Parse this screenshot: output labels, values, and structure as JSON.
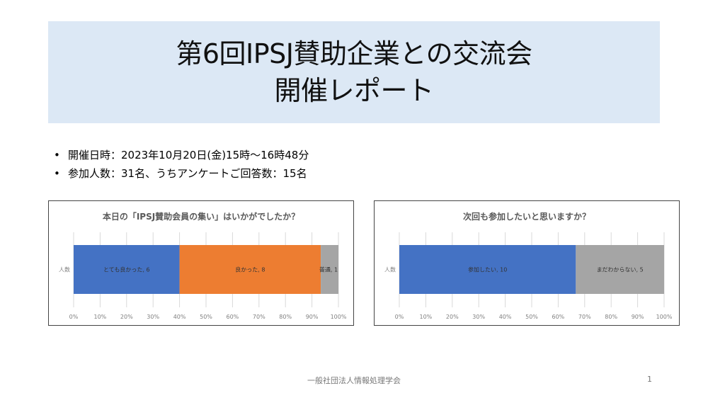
{
  "title": {
    "line1": "第6回IPSJ賛助企業との交流会",
    "line2": "開催レポート"
  },
  "bullets": [
    "開催日時：2023年10月20日(金)15時～16時48分",
    "参加人数：31名、うちアンケートご回答数：15名"
  ],
  "chart_data": [
    {
      "type": "bar",
      "stacked_percent": true,
      "orientation": "horizontal",
      "title": "本日の「IPSJ賛助会員の集い」はいかがでしたか？",
      "categories": [
        "人数"
      ],
      "series": [
        {
          "name": "とても良かった",
          "values": [
            6
          ],
          "label": "とても良かった, 6",
          "color": "#4472c4"
        },
        {
          "name": "良かった",
          "values": [
            8
          ],
          "label": "良かった, 8",
          "color": "#ed7d31"
        },
        {
          "name": "普通",
          "values": [
            1
          ],
          "label": "普通, 1",
          "color": "#a5a5a5"
        }
      ],
      "xticks": [
        "0%",
        "10%",
        "20%",
        "30%",
        "40%",
        "50%",
        "60%",
        "70%",
        "80%",
        "90%",
        "100%"
      ],
      "xlim": [
        0,
        100
      ],
      "grid": true
    },
    {
      "type": "bar",
      "stacked_percent": true,
      "orientation": "horizontal",
      "title": "次回も参加したいと思いますか？",
      "categories": [
        "人数"
      ],
      "series": [
        {
          "name": "参加したい",
          "values": [
            10
          ],
          "label": "参加したい, 10",
          "color": "#4472c4"
        },
        {
          "name": "まだわからない",
          "values": [
            5
          ],
          "label": "まだわからない, 5",
          "color": "#a5a5a5"
        }
      ],
      "xticks": [
        "0%",
        "10%",
        "20%",
        "30%",
        "40%",
        "50%",
        "60%",
        "70%",
        "80%",
        "90%",
        "100%"
      ],
      "xlim": [
        0,
        100
      ],
      "grid": true
    }
  ],
  "footer": {
    "org": "一般社団法人情報処理学会",
    "page": "1"
  }
}
